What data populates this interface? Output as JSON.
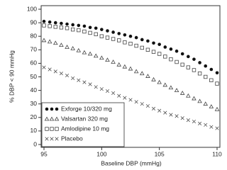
{
  "chart_data": {
    "type": "scatter",
    "xlabel": "Baseline DBP (mmHg)",
    "ylabel": "% DBP < 90 mmHg",
    "x": [
      95,
      95.5,
      96,
      96.5,
      97,
      97.5,
      98,
      98.5,
      99,
      99.5,
      100,
      100.5,
      101,
      101.5,
      102,
      102.5,
      103,
      103.5,
      104,
      104.5,
      105,
      105.5,
      106,
      106.5,
      107,
      107.5,
      108,
      108.5,
      109,
      109.5,
      110
    ],
    "series": [
      {
        "name": "Exforge 10/320 mg",
        "color": "#111111",
        "marker": "filled-circle",
        "values": [
          91,
          90.5,
          90,
          89.5,
          89,
          88.5,
          88,
          87.5,
          86.5,
          86,
          85,
          84,
          83,
          82,
          81,
          80,
          79,
          77.5,
          76.5,
          75,
          74,
          72,
          70.5,
          69,
          67,
          65,
          63,
          60.5,
          58,
          55.5,
          53
        ]
      },
      {
        "name": "Valsartan 320 mg",
        "color": "#444444",
        "marker": "open-triangle",
        "values": [
          77,
          76,
          75,
          73.5,
          72,
          71,
          69.5,
          68,
          67,
          65.5,
          64,
          62.5,
          61,
          59,
          57.5,
          56,
          54,
          52.5,
          50.5,
          48,
          46,
          44,
          42,
          40,
          38,
          36,
          34,
          32,
          30,
          28,
          26
        ]
      },
      {
        "name": "Amlodipine 10 mg",
        "color": "#444444",
        "marker": "open-square",
        "values": [
          88,
          87.5,
          87,
          86.5,
          86,
          85,
          84.5,
          83.5,
          82.5,
          81.5,
          80,
          79,
          78,
          77,
          75.5,
          74.5,
          73,
          71.5,
          70,
          68.5,
          67,
          65,
          63,
          61,
          59,
          57,
          55,
          52.5,
          50,
          47.5,
          45
        ]
      },
      {
        "name": "Placebo",
        "color": "#555555",
        "marker": "x",
        "values": [
          57,
          55.5,
          54,
          52.5,
          51,
          49,
          47.5,
          46,
          44.5,
          42.5,
          41,
          39.5,
          38,
          36,
          34.5,
          33,
          31.5,
          30,
          28.5,
          26.5,
          25,
          23.5,
          22,
          21,
          19.5,
          18,
          17,
          15.5,
          14.5,
          13,
          12
        ]
      }
    ],
    "xlim": [
      95,
      110
    ],
    "xticks": [
      95,
      100,
      105,
      110
    ],
    "ylim": [
      0,
      100
    ],
    "yticks": [
      0,
      10,
      20,
      30,
      40,
      50,
      60,
      70,
      80,
      90,
      100
    ],
    "grid": false,
    "legend": "lower-left"
  }
}
